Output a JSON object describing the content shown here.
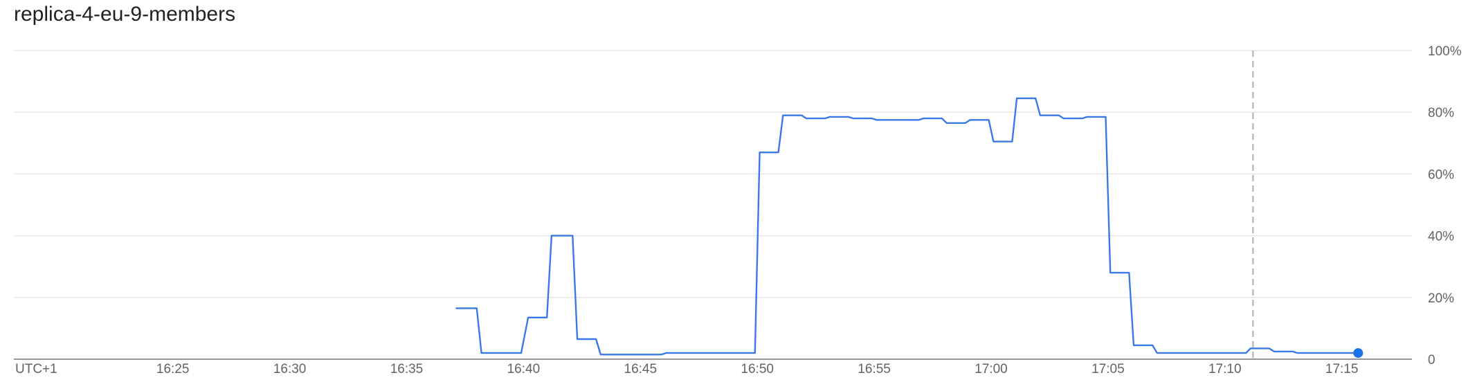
{
  "chart_data": {
    "type": "line",
    "title": "replica-4-eu-9-members",
    "timezone_label": "UTC+1",
    "x_tick_labels": [
      "16:25",
      "16:30",
      "16:35",
      "16:40",
      "16:45",
      "16:50",
      "16:55",
      "17:00",
      "17:05",
      "17:10",
      "17:15"
    ],
    "x_tick_values": [
      25,
      30,
      35,
      40,
      45,
      50,
      55,
      60,
      65,
      70,
      75
    ],
    "y_tick_labels": [
      "0",
      "20%",
      "40%",
      "60%",
      "80%",
      "100%"
    ],
    "y_tick_values": [
      0,
      20,
      40,
      60,
      80,
      100
    ],
    "xlim": [
      18.2,
      78.0
    ],
    "ylim": [
      0,
      100
    ],
    "x_unit": "minutes after 16:00",
    "grid": true,
    "marker_time": 71.2,
    "series_color": "#3b78e7",
    "end_point_color": "#1a73e8",
    "series": [
      {
        "name": "",
        "x": [
          37.1,
          38.0,
          38.2,
          39.9,
          40.2,
          41.0,
          41.2,
          42.1,
          42.3,
          43.1,
          43.3,
          45.9,
          46.1,
          49.9,
          50.1,
          50.9,
          51.1,
          51.9,
          52.1,
          52.9,
          53.1,
          53.9,
          54.1,
          54.9,
          55.1,
          56.9,
          57.1,
          57.9,
          58.1,
          58.9,
          59.1,
          59.9,
          60.1,
          60.9,
          61.1,
          61.9,
          62.1,
          62.9,
          63.1,
          63.9,
          64.1,
          64.9,
          65.1,
          65.9,
          66.1,
          66.9,
          67.1,
          70.9,
          71.1,
          71.9,
          72.1,
          72.9,
          73.1,
          75.7
        ],
        "y": [
          16.5,
          16.5,
          2,
          2,
          13.5,
          13.5,
          40,
          40,
          6.5,
          6.5,
          1.5,
          1.5,
          2,
          2,
          67,
          67,
          79,
          79,
          78,
          78,
          78.5,
          78.5,
          78,
          78,
          77.5,
          77.5,
          78,
          78,
          76.5,
          76.5,
          77.5,
          77.5,
          70.5,
          70.5,
          84.5,
          84.5,
          79,
          79,
          78,
          78,
          78.5,
          78.5,
          28,
          28,
          4.5,
          4.5,
          2,
          2,
          3.5,
          3.5,
          2.5,
          2.5,
          2,
          2
        ]
      }
    ]
  }
}
